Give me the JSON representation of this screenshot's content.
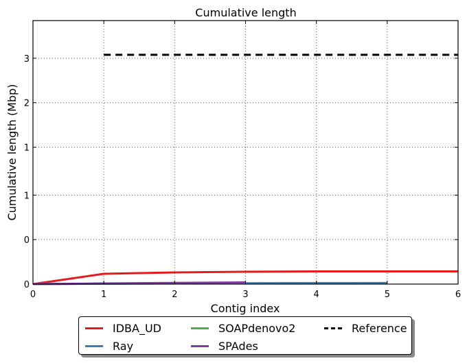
{
  "chart_data": {
    "type": "line",
    "title": "Cumulative length",
    "xlabel": "Contig index",
    "ylabel": "Cumulative length (Mbp)",
    "xlim": [
      0,
      6
    ],
    "ylim": [
      0,
      3.85
    ],
    "xticks": [
      "0",
      "1",
      "2",
      "3",
      "4",
      "5",
      "6"
    ],
    "yticks": [
      {
        "v": 0,
        "label": "0"
      },
      {
        "v": 0.65,
        "label": "0"
      },
      {
        "v": 1.3,
        "label": "1"
      },
      {
        "v": 2.0,
        "label": "1"
      },
      {
        "v": 2.65,
        "label": "2"
      },
      {
        "v": 3.3,
        "label": "3"
      }
    ],
    "grid": true,
    "legend_position": "bottom-outside",
    "series": [
      {
        "name": "IDBA_UD",
        "color": "#e41a1c",
        "dashed": false,
        "x": [
          0,
          1,
          2,
          3,
          4,
          5,
          6
        ],
        "y": [
          0,
          0.15,
          0.17,
          0.18,
          0.185,
          0.185,
          0.185
        ]
      },
      {
        "name": "Ray",
        "color": "#377eb8",
        "dashed": false,
        "x": [
          0,
          1,
          2,
          3,
          4,
          5
        ],
        "y": [
          0,
          0.006,
          0.01,
          0.013,
          0.015,
          0.016
        ]
      },
      {
        "name": "SOAPdenovo2",
        "color": "#4daf4a",
        "dashed": false,
        "x": [
          0,
          1,
          2,
          3
        ],
        "y": [
          0,
          0.007,
          0.012,
          0.015
        ]
      },
      {
        "name": "SPAdes",
        "color": "#7b3fa0",
        "dashed": false,
        "x": [
          0,
          1,
          2,
          3
        ],
        "y": [
          0,
          0.01,
          0.018,
          0.025
        ]
      },
      {
        "name": "Reference",
        "color": "#000000",
        "dashed": true,
        "x": [
          1,
          6
        ],
        "y": [
          3.35,
          3.35
        ]
      }
    ],
    "legend_order": [
      "IDBA_UD",
      "Ray",
      "SOAPdenovo2",
      "SPAdes",
      "Reference"
    ]
  }
}
